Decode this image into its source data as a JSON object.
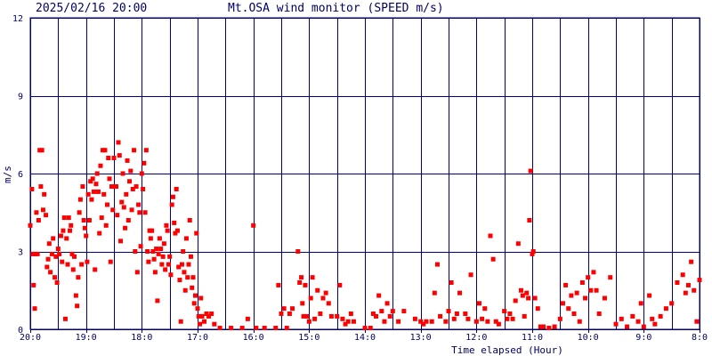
{
  "header": {
    "datetime": "2025/02/16 20:00",
    "title": "Mt.OSA wind monitor (SPEED m/s)"
  },
  "chart_data": {
    "type": "scatter",
    "title": "Mt.OSA wind monitor (SPEED m/s)",
    "xlabel": "Time elapsed (Hour)",
    "ylabel": "m/s",
    "x_unit": "hours elapsed since 2025/02/16 20:00",
    "xlim": [
      0,
      12
    ],
    "ylim": [
      0,
      12
    ],
    "y_ticks": [
      "0",
      "3",
      "6",
      "9",
      "12"
    ],
    "x_ticks": [
      "20:0",
      "19:0",
      "18:0",
      "17:0",
      "16:0",
      "15:0",
      "14:0",
      "13:0",
      "12:0",
      "11:0",
      "10:0",
      "9:0",
      "8:0"
    ],
    "grid": true,
    "marker_color": "#ff0000",
    "grid_color": "#000080",
    "axis_color": "#000066",
    "series": [
      {
        "points": [
          [
            0.0,
            4.0
          ],
          [
            0.03,
            5.4
          ],
          [
            0.05,
            2.9
          ],
          [
            0.06,
            1.7
          ],
          [
            0.08,
            0.8
          ],
          [
            0.09,
            2.9
          ],
          [
            0.11,
            4.5
          ],
          [
            0.13,
            2.9
          ],
          [
            0.15,
            4.2
          ],
          [
            0.17,
            6.9
          ],
          [
            0.19,
            5.5
          ],
          [
            0.21,
            6.9
          ],
          [
            0.23,
            4.6
          ],
          [
            0.25,
            5.2
          ],
          [
            0.28,
            4.4
          ],
          [
            0.3,
            2.4
          ],
          [
            0.32,
            2.7
          ],
          [
            0.34,
            3.3
          ],
          [
            0.36,
            2.2
          ],
          [
            0.39,
            2.9
          ],
          [
            0.41,
            3.5
          ],
          [
            0.44,
            2.0
          ],
          [
            0.46,
            2.8
          ],
          [
            0.48,
            1.8
          ],
          [
            0.5,
            3.1
          ],
          [
            0.52,
            2.9
          ],
          [
            0.55,
            3.6
          ],
          [
            0.57,
            2.6
          ],
          [
            0.59,
            3.8
          ],
          [
            0.61,
            4.3
          ],
          [
            0.63,
            0.4
          ],
          [
            0.65,
            3.5
          ],
          [
            0.67,
            2.5
          ],
          [
            0.69,
            4.3
          ],
          [
            0.71,
            3.8
          ],
          [
            0.73,
            4.0
          ],
          [
            0.75,
            2.9
          ],
          [
            0.77,
            2.3
          ],
          [
            0.79,
            2.8
          ],
          [
            0.82,
            1.3
          ],
          [
            0.84,
            0.9
          ],
          [
            0.86,
            2.0
          ],
          [
            0.88,
            4.5
          ],
          [
            0.9,
            5.0
          ],
          [
            0.92,
            2.5
          ],
          [
            0.94,
            5.5
          ],
          [
            0.96,
            4.2
          ],
          [
            0.98,
            3.9
          ],
          [
            1.0,
            3.6
          ],
          [
            1.02,
            2.6
          ],
          [
            1.04,
            5.2
          ],
          [
            1.06,
            4.2
          ],
          [
            1.08,
            5.7
          ],
          [
            1.1,
            5.0
          ],
          [
            1.12,
            5.8
          ],
          [
            1.14,
            5.3
          ],
          [
            1.16,
            2.3
          ],
          [
            1.18,
            5.6
          ],
          [
            1.2,
            6.0
          ],
          [
            1.22,
            5.3
          ],
          [
            1.24,
            3.7
          ],
          [
            1.26,
            6.3
          ],
          [
            1.28,
            4.3
          ],
          [
            1.3,
            6.9
          ],
          [
            1.32,
            5.2
          ],
          [
            1.34,
            6.9
          ],
          [
            1.36,
            4.0
          ],
          [
            1.38,
            4.8
          ],
          [
            1.4,
            6.6
          ],
          [
            1.42,
            5.8
          ],
          [
            1.44,
            2.6
          ],
          [
            1.46,
            5.5
          ],
          [
            1.48,
            4.6
          ],
          [
            1.5,
            6.6
          ],
          [
            1.52,
            5.5
          ],
          [
            1.54,
            5.5
          ],
          [
            1.56,
            4.4
          ],
          [
            1.58,
            7.2
          ],
          [
            1.6,
            6.7
          ],
          [
            1.62,
            3.4
          ],
          [
            1.64,
            4.9
          ],
          [
            1.66,
            6.0
          ],
          [
            1.68,
            4.7
          ],
          [
            1.7,
            3.9
          ],
          [
            1.72,
            5.2
          ],
          [
            1.74,
            6.5
          ],
          [
            1.76,
            4.2
          ],
          [
            1.78,
            5.7
          ],
          [
            1.8,
            6.1
          ],
          [
            1.82,
            4.6
          ],
          [
            1.84,
            5.4
          ],
          [
            1.86,
            6.9
          ],
          [
            1.88,
            3.0
          ],
          [
            1.9,
            5.5
          ],
          [
            1.92,
            2.2
          ],
          [
            1.94,
            4.8
          ],
          [
            1.96,
            4.5
          ],
          [
            1.98,
            3.2
          ],
          [
            2.0,
            6.0
          ],
          [
            2.02,
            5.4
          ],
          [
            2.04,
            6.4
          ],
          [
            2.06,
            4.5
          ],
          [
            2.08,
            6.9
          ],
          [
            2.1,
            3.0
          ],
          [
            2.12,
            2.6
          ],
          [
            2.14,
            3.8
          ],
          [
            2.16,
            3.5
          ],
          [
            2.18,
            3.8
          ],
          [
            2.2,
            3.0
          ],
          [
            2.22,
            2.7
          ],
          [
            2.24,
            2.2
          ],
          [
            2.26,
            3.1
          ],
          [
            2.28,
            1.1
          ],
          [
            2.3,
            2.9
          ],
          [
            2.32,
            3.5
          ],
          [
            2.34,
            3.1
          ],
          [
            2.36,
            2.5
          ],
          [
            2.38,
            2.8
          ],
          [
            2.4,
            3.3
          ],
          [
            2.42,
            2.3
          ],
          [
            2.44,
            4.0
          ],
          [
            2.46,
            3.8
          ],
          [
            2.48,
            2.5
          ],
          [
            2.5,
            2.8
          ],
          [
            2.52,
            2.1
          ],
          [
            2.54,
            4.8
          ],
          [
            2.56,
            5.1
          ],
          [
            2.58,
            4.1
          ],
          [
            2.6,
            3.7
          ],
          [
            2.62,
            5.4
          ],
          [
            2.64,
            3.8
          ],
          [
            2.66,
            2.4
          ],
          [
            2.68,
            1.9
          ],
          [
            2.7,
            0.3
          ],
          [
            2.72,
            2.5
          ],
          [
            2.74,
            3.0
          ],
          [
            2.76,
            2.2
          ],
          [
            2.78,
            1.5
          ],
          [
            2.8,
            3.5
          ],
          [
            2.82,
            2.0
          ],
          [
            2.84,
            2.5
          ],
          [
            2.86,
            4.2
          ],
          [
            2.88,
            2.8
          ],
          [
            2.9,
            1.6
          ],
          [
            2.92,
            2.0
          ],
          [
            2.94,
            1.0
          ],
          [
            2.96,
            1.3
          ],
          [
            2.98,
            3.7
          ],
          [
            3.0,
            0.8
          ],
          [
            3.02,
            0.5
          ],
          [
            3.04,
            0.2
          ],
          [
            3.06,
            1.2
          ],
          [
            3.08,
            0.5
          ],
          [
            3.12,
            0.3
          ],
          [
            3.16,
            0.6
          ],
          [
            3.2,
            0.5
          ],
          [
            3.25,
            0.6
          ],
          [
            3.3,
            0.2
          ],
          [
            3.4,
            0.05
          ],
          [
            3.6,
            0.05
          ],
          [
            3.8,
            0.05
          ],
          [
            3.9,
            0.4
          ],
          [
            4.0,
            4.0
          ],
          [
            4.05,
            0.05
          ],
          [
            4.2,
            0.05
          ],
          [
            4.4,
            0.05
          ],
          [
            4.45,
            1.7
          ],
          [
            4.5,
            0.6
          ],
          [
            4.55,
            0.8
          ],
          [
            4.6,
            0.05
          ],
          [
            4.65,
            0.6
          ],
          [
            4.7,
            0.8
          ],
          [
            4.8,
            3.0
          ],
          [
            4.83,
            1.8
          ],
          [
            4.86,
            2.0
          ],
          [
            4.88,
            1.0
          ],
          [
            4.9,
            0.5
          ],
          [
            4.93,
            1.7
          ],
          [
            4.96,
            0.5
          ],
          [
            5.0,
            0.3
          ],
          [
            5.03,
            1.2
          ],
          [
            5.06,
            2.0
          ],
          [
            5.1,
            0.4
          ],
          [
            5.15,
            1.5
          ],
          [
            5.2,
            0.6
          ],
          [
            5.25,
            1.2
          ],
          [
            5.3,
            1.4
          ],
          [
            5.35,
            1.0
          ],
          [
            5.4,
            0.5
          ],
          [
            5.5,
            0.5
          ],
          [
            5.55,
            1.7
          ],
          [
            5.6,
            0.4
          ],
          [
            5.65,
            0.2
          ],
          [
            5.7,
            0.3
          ],
          [
            5.75,
            0.6
          ],
          [
            5.8,
            0.3
          ],
          [
            6.0,
            0.05
          ],
          [
            6.1,
            0.05
          ],
          [
            6.15,
            0.6
          ],
          [
            6.2,
            0.5
          ],
          [
            6.25,
            1.3
          ],
          [
            6.3,
            0.7
          ],
          [
            6.35,
            0.3
          ],
          [
            6.4,
            1.0
          ],
          [
            6.45,
            0.5
          ],
          [
            6.5,
            0.7
          ],
          [
            6.6,
            0.3
          ],
          [
            6.7,
            0.7
          ],
          [
            6.9,
            0.4
          ],
          [
            7.0,
            0.3
          ],
          [
            7.05,
            0.2
          ],
          [
            7.1,
            0.3
          ],
          [
            7.2,
            0.3
          ],
          [
            7.25,
            1.4
          ],
          [
            7.3,
            2.5
          ],
          [
            7.35,
            0.5
          ],
          [
            7.45,
            0.3
          ],
          [
            7.5,
            0.7
          ],
          [
            7.55,
            1.8
          ],
          [
            7.6,
            0.4
          ],
          [
            7.65,
            0.6
          ],
          [
            7.7,
            1.4
          ],
          [
            7.8,
            0.6
          ],
          [
            7.85,
            0.4
          ],
          [
            7.9,
            2.1
          ],
          [
            8.0,
            0.3
          ],
          [
            8.05,
            1.0
          ],
          [
            8.1,
            0.4
          ],
          [
            8.15,
            0.8
          ],
          [
            8.2,
            0.3
          ],
          [
            8.25,
            3.6
          ],
          [
            8.3,
            2.7
          ],
          [
            8.35,
            0.3
          ],
          [
            8.4,
            0.2
          ],
          [
            8.5,
            0.7
          ],
          [
            8.55,
            0.4
          ],
          [
            8.6,
            0.6
          ],
          [
            8.65,
            0.4
          ],
          [
            8.7,
            1.1
          ],
          [
            8.75,
            3.3
          ],
          [
            8.8,
            1.5
          ],
          [
            8.83,
            1.3
          ],
          [
            8.86,
            0.5
          ],
          [
            8.9,
            1.4
          ],
          [
            8.93,
            1.2
          ],
          [
            8.95,
            4.2
          ],
          [
            8.97,
            6.1
          ],
          [
            9.0,
            2.9
          ],
          [
            9.02,
            3.0
          ],
          [
            9.05,
            1.2
          ],
          [
            9.1,
            0.8
          ],
          [
            9.15,
            0.1
          ],
          [
            9.2,
            0.1
          ],
          [
            9.3,
            0.05
          ],
          [
            9.4,
            0.1
          ],
          [
            9.5,
            0.4
          ],
          [
            9.55,
            1.0
          ],
          [
            9.6,
            1.7
          ],
          [
            9.65,
            0.8
          ],
          [
            9.7,
            1.3
          ],
          [
            9.75,
            0.6
          ],
          [
            9.8,
            1.4
          ],
          [
            9.85,
            0.3
          ],
          [
            9.9,
            1.8
          ],
          [
            9.95,
            1.2
          ],
          [
            10.0,
            2.0
          ],
          [
            10.05,
            1.5
          ],
          [
            10.1,
            2.2
          ],
          [
            10.15,
            1.5
          ],
          [
            10.2,
            0.6
          ],
          [
            10.3,
            1.2
          ],
          [
            10.4,
            2.0
          ],
          [
            10.5,
            0.2
          ],
          [
            10.6,
            0.4
          ],
          [
            10.7,
            0.1
          ],
          [
            10.8,
            0.5
          ],
          [
            10.9,
            0.3
          ],
          [
            10.95,
            1.0
          ],
          [
            11.0,
            0.1
          ],
          [
            11.1,
            1.3
          ],
          [
            11.15,
            0.4
          ],
          [
            11.2,
            0.2
          ],
          [
            11.3,
            0.5
          ],
          [
            11.4,
            0.8
          ],
          [
            11.5,
            1.0
          ],
          [
            11.6,
            1.8
          ],
          [
            11.7,
            2.1
          ],
          [
            11.75,
            1.4
          ],
          [
            11.8,
            1.7
          ],
          [
            11.85,
            2.6
          ],
          [
            11.9,
            1.5
          ],
          [
            11.95,
            0.3
          ],
          [
            12.0,
            1.9
          ]
        ]
      }
    ]
  }
}
